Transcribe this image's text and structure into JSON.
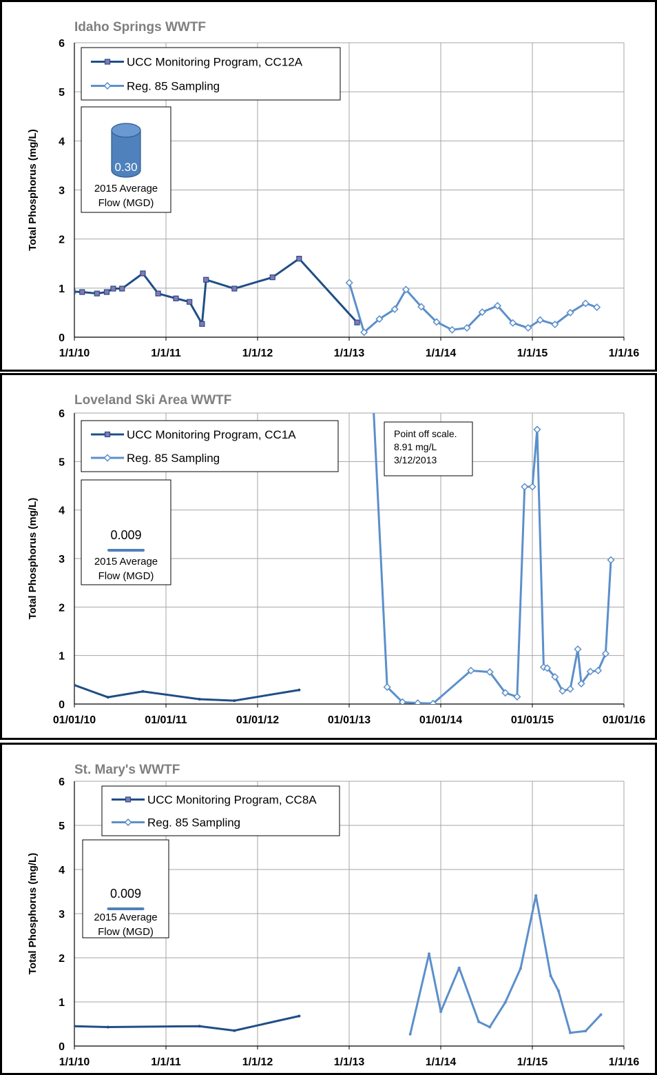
{
  "colors": {
    "ucc_line": "#1f4e86",
    "ucc_marker_fill": "#8c76b3",
    "reg85_line": "#5b8fcb",
    "reg85_marker_fill": "#ffffff",
    "cylinder": "#4f81bd",
    "grid": "#a6a6a6",
    "title_text": "#7f7f7f"
  },
  "chart_data": [
    {
      "type": "line",
      "title": "Idaho Springs WWTF",
      "ylabel": "Total Phosphorus (mg/L)",
      "xlabel": "",
      "ylim": [
        0,
        6
      ],
      "yticks": [
        "0",
        "1",
        "2",
        "3",
        "4",
        "5",
        "6"
      ],
      "xlim": [
        "2010-01-01",
        "2016-01-01"
      ],
      "xticks": [
        "1/1/10",
        "1/1/11",
        "1/1/12",
        "1/1/13",
        "1/1/14",
        "1/1/15",
        "1/1/16"
      ],
      "grid": true,
      "legend": {
        "position": "top-left",
        "entries": [
          "UCC Monitoring Program, CC12A",
          "Reg. 85 Sampling"
        ]
      },
      "flow_box": {
        "value": "0.30",
        "label_1": "2015 Average",
        "label_2": "Flow (MGD)",
        "icon": "cylinder-icon"
      },
      "series": [
        {
          "name": "UCC Monitoring Program, CC12A",
          "marker": "square",
          "x": [
            "2009-12-25",
            "2010-02-01",
            "2010-04-01",
            "2010-05-10",
            "2010-06-05",
            "2010-07-10",
            "2010-10-01",
            "2010-12-01",
            "2011-02-10",
            "2011-04-05",
            "2011-05-25",
            "2011-06-10",
            "2011-10-01",
            "2012-03-01",
            "2012-06-15",
            "2013-02-01"
          ],
          "y": [
            0.93,
            0.92,
            0.89,
            0.92,
            0.99,
            0.99,
            1.3,
            0.89,
            0.79,
            0.72,
            0.27,
            1.17,
            0.99,
            1.22,
            1.6,
            0.3
          ]
        },
        {
          "name": "Reg. 85 Sampling",
          "marker": "diamond",
          "x": [
            "2013-01-01",
            "2013-03-01",
            "2013-05-01",
            "2013-07-01",
            "2013-08-15",
            "2013-10-15",
            "2013-12-15",
            "2014-02-15",
            "2014-04-15",
            "2014-06-15",
            "2014-08-15",
            "2014-10-15",
            "2014-12-15",
            "2015-02-01",
            "2015-04-01",
            "2015-06-01",
            "2015-08-01",
            "2015-09-15"
          ],
          "y": [
            1.11,
            0.1,
            0.37,
            0.57,
            0.97,
            0.62,
            0.31,
            0.15,
            0.19,
            0.51,
            0.64,
            0.29,
            0.19,
            0.35,
            0.26,
            0.5,
            0.69,
            0.61
          ]
        }
      ]
    },
    {
      "type": "line",
      "title": "Loveland Ski Area WWTF",
      "ylabel": "Total Phosphorus (mg/L)",
      "xlabel": "",
      "ylim": [
        0,
        6
      ],
      "yticks": [
        "0",
        "1",
        "2",
        "3",
        "4",
        "5",
        "6"
      ],
      "xlim": [
        "2010-01-01",
        "2016-01-01"
      ],
      "xticks": [
        "01/01/10",
        "01/01/11",
        "01/01/12",
        "01/01/13",
        "01/01/14",
        "01/01/15",
        "01/01/16"
      ],
      "grid": true,
      "legend": {
        "position": "top-left",
        "entries": [
          "UCC Monitoring Program, CC1A",
          "Reg. 85 Sampling"
        ]
      },
      "flow_box": {
        "value": "0.009",
        "label_1": "2015 Average",
        "label_2": "Flow (MGD)",
        "icon": "flat-cylinder-icon"
      },
      "annotation": {
        "lines": [
          "Point off scale.",
          "8.91 mg/L",
          "3/12/2013"
        ]
      },
      "series": [
        {
          "name": "UCC Monitoring Program, CC1A",
          "marker": "none",
          "x": [
            "2010-01-01",
            "2010-05-15",
            "2010-10-01",
            "2011-05-15",
            "2011-10-01",
            "2012-06-15"
          ],
          "y": [
            0.39,
            0.14,
            0.26,
            0.1,
            0.07,
            0.29
          ]
        },
        {
          "name": "Reg. 85 Sampling",
          "marker": "diamond",
          "x": [
            "2013-03-12",
            "2013-06-01",
            "2013-08-01",
            "2013-10-01",
            "2013-12-01",
            "2014-05-01",
            "2014-07-15",
            "2014-09-15",
            "2014-11-01",
            "2014-12-01",
            "2015-01-01",
            "2015-01-20",
            "2015-02-15",
            "2015-03-01",
            "2015-04-01",
            "2015-05-01",
            "2015-06-01",
            "2015-07-01",
            "2015-07-15",
            "2015-08-20",
            "2015-09-20",
            "2015-10-20",
            "2015-11-10"
          ],
          "y": [
            8.91,
            0.35,
            0.04,
            0.02,
            0.01,
            0.69,
            0.66,
            0.23,
            0.15,
            4.48,
            4.48,
            5.66,
            0.76,
            0.74,
            0.56,
            0.27,
            0.31,
            1.13,
            0.42,
            0.67,
            0.69,
            1.04,
            2.97
          ]
        }
      ]
    },
    {
      "type": "line",
      "title": "St. Mary's WWTF",
      "ylabel": "Total Phosphorus (mg/L)",
      "xlabel": "",
      "ylim": [
        0,
        6
      ],
      "yticks": [
        "0",
        "1",
        "2",
        "3",
        "4",
        "5",
        "6"
      ],
      "xlim": [
        "2010-01-01",
        "2016-01-01"
      ],
      "xticks": [
        "1/1/10",
        "1/1/11",
        "1/1/12",
        "1/1/13",
        "1/1/14",
        "1/1/15",
        "1/1/16"
      ],
      "grid": true,
      "legend": {
        "position": "top-left",
        "entries": [
          "UCC Monitoring Program, CC8A",
          "Reg. 85 Sampling"
        ]
      },
      "flow_box": {
        "value": "0.009",
        "label_1": "2015 Average",
        "label_2": "Flow (MGD)",
        "icon": "flat-cylinder-icon"
      },
      "series": [
        {
          "name": "UCC Monitoring Program, CC8A",
          "marker": "none",
          "x": [
            "2010-01-01",
            "2010-05-15",
            "2011-05-15",
            "2011-10-01",
            "2012-06-15"
          ],
          "y": [
            0.45,
            0.43,
            0.45,
            0.35,
            0.68
          ]
        },
        {
          "name": "Reg. 85 Sampling",
          "marker": "none",
          "x": [
            "2013-09-01",
            "2013-11-15",
            "2014-01-01",
            "2014-03-15",
            "2014-06-01",
            "2014-07-15",
            "2014-09-15",
            "2014-11-15",
            "2015-01-15",
            "2015-03-15",
            "2015-04-15",
            "2015-06-01",
            "2015-08-01",
            "2015-10-01"
          ],
          "y": [
            0.27,
            2.09,
            0.78,
            1.77,
            0.55,
            0.43,
            0.99,
            1.76,
            3.41,
            1.59,
            1.25,
            0.3,
            0.34,
            0.71
          ]
        }
      ]
    }
  ]
}
